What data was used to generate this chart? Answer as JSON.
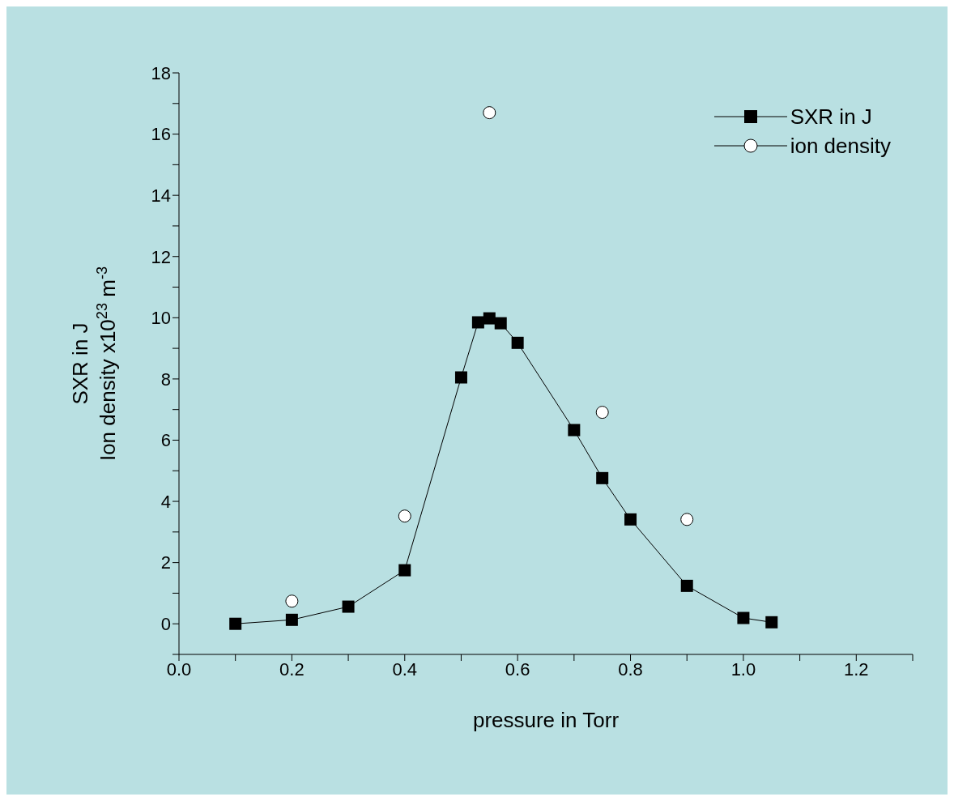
{
  "chart_data": {
    "type": "line",
    "xlabel": "pressure in Torr",
    "ylabel": "SXR in J\nIon density x10$^{23}$ m$^{-3}$",
    "xlim": [
      0,
      1.3
    ],
    "ylim": [
      -1,
      18
    ],
    "xticks": [
      {
        "value": 0,
        "label": "0.0"
      },
      {
        "value": 0.1,
        "label": null
      },
      {
        "value": 0.2,
        "label": "0.2"
      },
      {
        "value": 0.3,
        "label": null
      },
      {
        "value": 0.4,
        "label": "0.4"
      },
      {
        "value": 0.5,
        "label": null
      },
      {
        "value": 0.6,
        "label": "0.6"
      },
      {
        "value": 0.7,
        "label": null
      },
      {
        "value": 0.8,
        "label": "0.8"
      },
      {
        "value": 0.9,
        "label": null
      },
      {
        "value": 1.0,
        "label": "1.0"
      },
      {
        "value": 1.1,
        "label": null
      },
      {
        "value": 1.2,
        "label": "1.2"
      },
      {
        "value": 1.3,
        "label": null
      }
    ],
    "yticks": [
      {
        "value": -1,
        "label": null
      },
      0,
      {
        "value": 1,
        "label": null
      },
      2,
      {
        "value": 3,
        "label": null
      },
      4,
      {
        "value": 5,
        "label": null
      },
      6,
      {
        "value": 7,
        "label": null
      },
      8,
      {
        "value": 9,
        "label": null
      },
      10,
      {
        "value": 11,
        "label": null
      },
      12,
      {
        "value": 13,
        "label": null
      },
      14,
      {
        "value": 15,
        "label": null
      },
      16,
      {
        "value": 17,
        "label": null
      },
      18
    ],
    "grid": false,
    "legend": "top right",
    "series": [
      {
        "name": "SXR in J",
        "marker": "square",
        "color": "#000000",
        "x": [
          0.1,
          0.2,
          0.3,
          0.4,
          0.5,
          0.53,
          0.55,
          0.57,
          0.6,
          0.7,
          0.75,
          0.8,
          0.9,
          1.0,
          1.05
        ],
        "values": [
          0,
          0.13,
          0.56,
          1.75,
          8.05,
          9.85,
          9.98,
          9.82,
          9.18,
          6.33,
          4.76,
          3.41,
          1.24,
          0.19,
          0.05
        ]
      },
      {
        "name": "ion density",
        "type": "scatter",
        "marker": "circle",
        "color": "#000000",
        "x": [
          0.2,
          0.4,
          0.55,
          0.75,
          0.9
        ],
        "values": [
          0.74,
          3.52,
          16.7,
          6.91,
          3.41
        ]
      }
    ]
  }
}
